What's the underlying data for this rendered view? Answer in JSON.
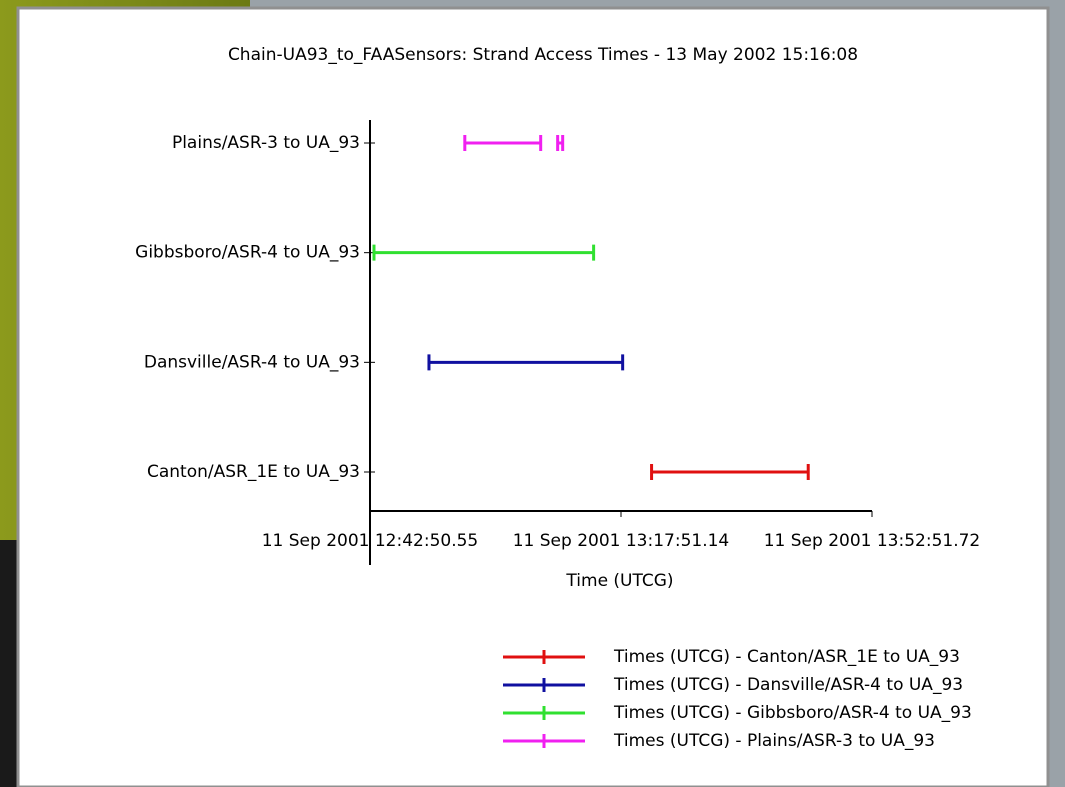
{
  "chart_data": {
    "type": "interval",
    "title": "Chain-UA93_to_FAASensors:  Strand Access Times - 13 May 2002 15:16:08",
    "x_label": "Time (UTCG)",
    "categories": [
      "Canton/ASR_1E to UA_93",
      "Dansville/ASR-4 to UA_93",
      "Gibbsboro/ASR-4 to UA_93",
      "Plains/ASR-3 to UA_93"
    ],
    "xlim": [
      "2001-09-11T12:42:50.55",
      "2001-09-11T13:52:51.72"
    ],
    "xticks": [
      {
        "value": "2001-09-11T12:42:50.55",
        "label": "11 Sep 2001 12:42:50.55"
      },
      {
        "value": "2001-09-11T13:17:51.14",
        "label": "11 Sep 2001 13:17:51.14"
      },
      {
        "value": "2001-09-11T13:52:51.72",
        "label": "11 Sep 2001 13:52:51.72"
      }
    ],
    "series": [
      {
        "name": "Times (UTCG) - Canton/ASR_1E to UA_93",
        "color": "#e01010",
        "values": [
          [
            "2001-09-11T13:22:07",
            "2001-09-11T13:43:58"
          ]
        ]
      },
      {
        "name": "Times (UTCG) - Dansville/ASR-4 to UA_93",
        "color": "#1010a0",
        "values": [
          [
            "2001-09-11T12:51:04",
            "2001-09-11T13:18:05"
          ]
        ]
      },
      {
        "name": "Times (UTCG) - Gibbsboro/ASR-4 to UA_93",
        "color": "#30e030",
        "values": [
          [
            "2001-09-11T12:43:24",
            "2001-09-11T13:14:02"
          ]
        ]
      },
      {
        "name": "Times (UTCG) - Plains/ASR-3 to UA_93",
        "color": "#f020f0",
        "values": [
          [
            "2001-09-11T12:56:04",
            "2001-09-11T13:06:39"
          ],
          [
            "2001-09-11T13:09:01",
            "2001-09-11T13:09:43"
          ]
        ]
      }
    ]
  }
}
